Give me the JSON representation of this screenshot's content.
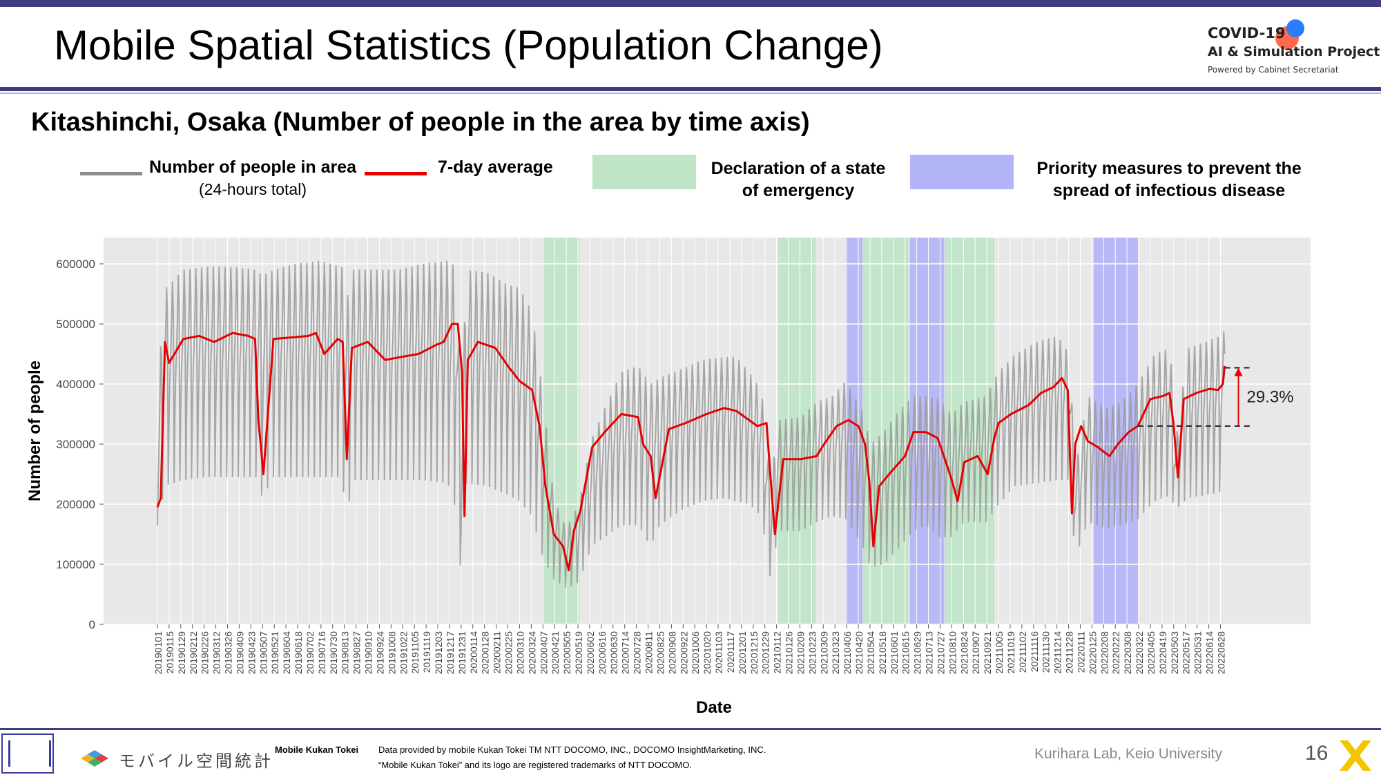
{
  "slide": {
    "title": "Mobile Spatial Statistics (Population Change)",
    "subtitle": "Kitashinchi, Osaka (Number of people in the area by time axis)",
    "page_number": "16",
    "lab": "Kurihara Lab, Keio University",
    "colors": {
      "accent_bar": "#3f3f7f",
      "raw_series": "#9a9a9a",
      "avg_series": "#e60000",
      "emergency": "#bfe5c6",
      "priority": "#b3b3f7"
    }
  },
  "logo": {
    "line1": "COVID-19",
    "line2": "AI & Simulation Project",
    "line3": "Powered by Cabinet Secretariat"
  },
  "legend": {
    "raw_label": "Number of people in area",
    "raw_sub": "(24-hours total)",
    "avg_label": "7-day average",
    "emergency_line1": "Declaration of a state",
    "emergency_line2": "of emergency",
    "priority_line1": "Priority measures to prevent the",
    "priority_line2": "spread of infectious disease"
  },
  "footer": {
    "jp_brand": "モバイル空間統計",
    "brand_en": "Mobile Kukan Tokei",
    "note1": "Data provided by mobile Kukan Tokei TM NTT DOCOMO, INC., DOCOMO InsightMarketing, INC.",
    "note2": "“Mobile Kukan Tokei” and its logo are registered trademarks of NTT DOCOMO.",
    "seal_icon": "university-seal-icon",
    "cube_icon": "isometric-cubes-logo-icon",
    "x_icon": "x-brand-icon"
  },
  "chart_data": {
    "type": "line",
    "xlabel": "Date",
    "ylabel": "Number of people",
    "ylim": [
      0,
      630000
    ],
    "yticks": [
      0,
      100000,
      200000,
      300000,
      400000,
      500000,
      600000
    ],
    "ytick_labels": [
      "0",
      "100000",
      "200000",
      "300000",
      "400000",
      "500000",
      "600000"
    ],
    "x_start": "2019-01-01",
    "x_end": "2022-07-10",
    "xtick_labels": [
      "20190101",
      "20190115",
      "20190129",
      "20190212",
      "20190226",
      "20190312",
      "20190326",
      "20190409",
      "20190423",
      "20190507",
      "20190521",
      "20190604",
      "20190618",
      "20190702",
      "20190716",
      "20190730",
      "20190813",
      "20190827",
      "20190910",
      "20190924",
      "20191008",
      "20191022",
      "20191105",
      "20191119",
      "20191203",
      "20191217",
      "20191231",
      "20200114",
      "20200128",
      "20200211",
      "20200225",
      "20200310",
      "20200324",
      "20200407",
      "20200421",
      "20200505",
      "20200519",
      "20200602",
      "20200616",
      "20200630",
      "20200714",
      "20200728",
      "20200811",
      "20200825",
      "20200908",
      "20200922",
      "20201006",
      "20201020",
      "20201103",
      "20201117",
      "20201201",
      "20201215",
      "20201229",
      "20210112",
      "20210126",
      "20210209",
      "20210223",
      "20210309",
      "20210323",
      "20210406",
      "20210420",
      "20210504",
      "20210518",
      "20210601",
      "20210615",
      "20210629",
      "20210713",
      "20210727",
      "20210810",
      "20210824",
      "20210907",
      "20210921",
      "20211005",
      "20211019",
      "20211102",
      "20211116",
      "20211130",
      "20211214",
      "20211228",
      "20220111",
      "20220125",
      "20220208",
      "20220222",
      "20220308",
      "20220322",
      "20220405",
      "20220419",
      "20220503",
      "20220517",
      "20220531",
      "20220614",
      "20220628"
    ],
    "grid": true,
    "shaded_periods": [
      {
        "kind": "emergency",
        "start": "2020-04-07",
        "end": "2020-05-21"
      },
      {
        "kind": "emergency",
        "start": "2021-01-14",
        "end": "2021-02-28"
      },
      {
        "kind": "priority",
        "start": "2021-04-05",
        "end": "2021-04-25"
      },
      {
        "kind": "emergency",
        "start": "2021-04-25",
        "end": "2021-06-20"
      },
      {
        "kind": "priority",
        "start": "2021-06-21",
        "end": "2021-08-01"
      },
      {
        "kind": "emergency",
        "start": "2021-08-02",
        "end": "2021-09-30"
      },
      {
        "kind": "priority",
        "start": "2022-01-27",
        "end": "2022-03-21"
      }
    ],
    "series": [
      {
        "name": "Number of people in area",
        "style": "weekly-oscillating",
        "x": [
          "2019-01-01",
          "2019-01-08",
          "2019-02-01",
          "2019-03-01",
          "2019-04-01",
          "2019-04-29",
          "2019-05-07",
          "2019-05-20",
          "2019-06-15",
          "2019-07-15",
          "2019-08-10",
          "2019-08-16",
          "2019-08-22",
          "2019-09-15",
          "2019-10-15",
          "2019-11-15",
          "2019-12-15",
          "2019-12-25",
          "2019-12-31",
          "2020-01-06",
          "2020-02-01",
          "2020-02-25",
          "2020-03-10",
          "2020-03-25",
          "2020-04-07",
          "2020-04-20",
          "2020-05-05",
          "2020-05-20",
          "2020-06-05",
          "2020-06-20",
          "2020-07-10",
          "2020-07-30",
          "2020-08-14",
          "2020-08-25",
          "2020-09-20",
          "2020-10-15",
          "2020-11-10",
          "2020-11-25",
          "2020-12-10",
          "2020-12-25",
          "2021-01-05",
          "2021-01-14",
          "2021-02-10",
          "2021-03-01",
          "2021-03-20",
          "2021-04-05",
          "2021-04-25",
          "2021-05-05",
          "2021-05-20",
          "2021-06-10",
          "2021-06-25",
          "2021-07-10",
          "2021-07-25",
          "2021-08-10",
          "2021-08-25",
          "2021-09-20",
          "2021-10-05",
          "2021-10-25",
          "2021-11-20",
          "2021-12-15",
          "2021-12-29",
          "2022-01-05",
          "2022-01-20",
          "2022-02-10",
          "2022-03-01",
          "2022-03-21",
          "2022-04-10",
          "2022-04-29",
          "2022-05-05",
          "2022-05-20",
          "2022-06-10",
          "2022-06-28",
          "2022-07-03"
        ],
        "low": [
          70000,
          230000,
          240000,
          245000,
          245000,
          245000,
          210000,
          245000,
          245000,
          245000,
          245000,
          170000,
          240000,
          240000,
          240000,
          240000,
          235000,
          190000,
          80000,
          235000,
          230000,
          215000,
          205000,
          180000,
          110000,
          75000,
          60000,
          70000,
          130000,
          145000,
          165000,
          165000,
          130000,
          165000,
          190000,
          205000,
          210000,
          205000,
          200000,
          180000,
          70000,
          155000,
          155000,
          170000,
          180000,
          175000,
          130000,
          95000,
          100000,
          130000,
          155000,
          165000,
          145000,
          145000,
          170000,
          170000,
          200000,
          230000,
          235000,
          240000,
          240000,
          110000,
          170000,
          160000,
          165000,
          175000,
          205000,
          215000,
          190000,
          210000,
          215000,
          220000,
          225000
        ],
        "high": [
          340000,
          555000,
          590000,
          595000,
          595000,
          590000,
          580000,
          590000,
          600000,
          605000,
          595000,
          540000,
          590000,
          590000,
          590000,
          600000,
          605000,
          595000,
          330000,
          590000,
          585000,
          565000,
          560000,
          520000,
          380000,
          210000,
          160000,
          200000,
          310000,
          360000,
          420000,
          430000,
          400000,
          410000,
          425000,
          440000,
          445000,
          445000,
          420000,
          390000,
          230000,
          340000,
          345000,
          370000,
          380000,
          405000,
          355000,
          300000,
          320000,
          360000,
          380000,
          380000,
          375000,
          350000,
          370000,
          380000,
          420000,
          450000,
          470000,
          480000,
          450000,
          260000,
          380000,
          360000,
          370000,
          400000,
          450000,
          460000,
          300000,
          460000,
          470000,
          480000,
          490000
        ]
      },
      {
        "name": "7-day average",
        "x": [
          "2019-01-01",
          "2019-01-05",
          "2019-01-10",
          "2019-01-15",
          "2019-02-01",
          "2019-02-20",
          "2019-03-10",
          "2019-04-01",
          "2019-04-20",
          "2019-04-28",
          "2019-05-02",
          "2019-05-08",
          "2019-05-20",
          "2019-06-15",
          "2019-07-01",
          "2019-07-10",
          "2019-07-20",
          "2019-08-05",
          "2019-08-11",
          "2019-08-16",
          "2019-08-22",
          "2019-09-10",
          "2019-10-01",
          "2019-10-20",
          "2019-11-10",
          "2019-12-01",
          "2019-12-10",
          "2019-12-20",
          "2019-12-27",
          "2020-01-01",
          "2020-01-04",
          "2020-01-08",
          "2020-01-20",
          "2020-02-10",
          "2020-02-25",
          "2020-03-10",
          "2020-03-25",
          "2020-04-03",
          "2020-04-10",
          "2020-04-20",
          "2020-05-01",
          "2020-05-08",
          "2020-05-14",
          "2020-05-22",
          "2020-06-05",
          "2020-06-20",
          "2020-07-10",
          "2020-07-30",
          "2020-08-05",
          "2020-08-14",
          "2020-08-20",
          "2020-09-05",
          "2020-09-25",
          "2020-10-20",
          "2020-11-10",
          "2020-11-25",
          "2020-12-10",
          "2020-12-20",
          "2020-12-31",
          "2021-01-05",
          "2021-01-10",
          "2021-01-20",
          "2021-02-10",
          "2021-03-01",
          "2021-03-10",
          "2021-03-25",
          "2021-04-08",
          "2021-04-20",
          "2021-04-28",
          "2021-05-03",
          "2021-05-08",
          "2021-05-15",
          "2021-05-30",
          "2021-06-15",
          "2021-06-25",
          "2021-07-10",
          "2021-07-24",
          "2021-08-03",
          "2021-08-10",
          "2021-08-17",
          "2021-08-25",
          "2021-09-10",
          "2021-09-22",
          "2021-09-30",
          "2021-10-05",
          "2021-10-20",
          "2021-11-10",
          "2021-11-25",
          "2021-12-10",
          "2021-12-20",
          "2021-12-27",
          "2022-01-01",
          "2022-01-05",
          "2022-01-12",
          "2022-01-20",
          "2022-02-01",
          "2022-02-15",
          "2022-02-25",
          "2022-03-10",
          "2022-03-21",
          "2022-04-05",
          "2022-04-20",
          "2022-04-28",
          "2022-05-03",
          "2022-05-08",
          "2022-05-15",
          "2022-05-30",
          "2022-06-15",
          "2022-06-25",
          "2022-07-01",
          "2022-07-03"
        ],
        "y": [
          195000,
          210000,
          470000,
          435000,
          475000,
          480000,
          470000,
          485000,
          480000,
          475000,
          340000,
          250000,
          475000,
          478000,
          480000,
          485000,
          450000,
          475000,
          470000,
          275000,
          460000,
          470000,
          440000,
          445000,
          450000,
          465000,
          470000,
          500000,
          500000,
          420000,
          180000,
          440000,
          470000,
          460000,
          430000,
          405000,
          390000,
          330000,
          230000,
          150000,
          130000,
          90000,
          155000,
          190000,
          295000,
          320000,
          350000,
          345000,
          300000,
          280000,
          210000,
          325000,
          335000,
          350000,
          360000,
          355000,
          340000,
          330000,
          335000,
          240000,
          150000,
          275000,
          275000,
          280000,
          300000,
          330000,
          340000,
          330000,
          300000,
          240000,
          130000,
          230000,
          255000,
          280000,
          320000,
          320000,
          310000,
          270000,
          240000,
          205000,
          270000,
          280000,
          250000,
          310000,
          335000,
          350000,
          365000,
          385000,
          395000,
          410000,
          390000,
          185000,
          300000,
          330000,
          305000,
          295000,
          280000,
          300000,
          320000,
          330000,
          375000,
          380000,
          385000,
          330000,
          245000,
          375000,
          385000,
          392000,
          390000,
          400000,
          430000
        ]
      }
    ],
    "annotation": {
      "text": "29.3%",
      "from_value": 330000,
      "to_value": 427000,
      "date_from": "2022-03-21",
      "date_to": "2022-07-03"
    }
  }
}
